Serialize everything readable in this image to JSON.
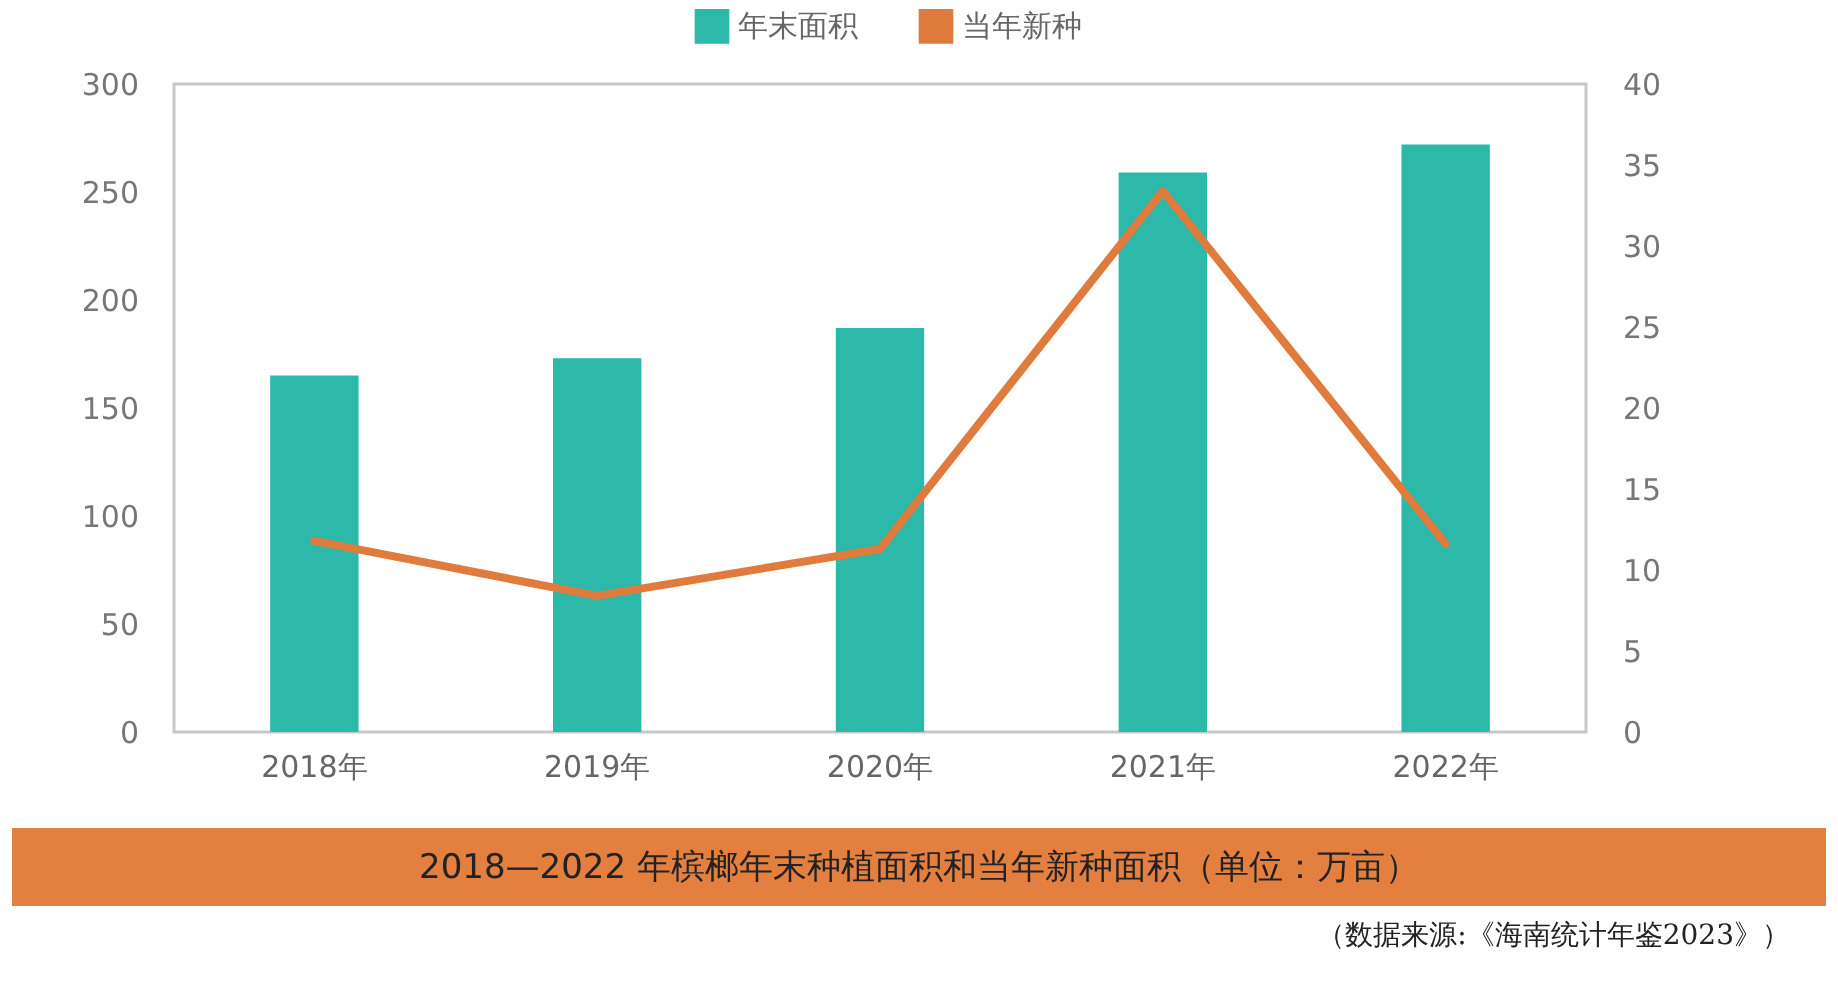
{
  "chart_data": {
    "type": "bar",
    "title": "2018—2022 年槟榔年末种植面积和当年新种面积（单位：万亩）",
    "annotations": [
      "（数据来源:《海南统计年鉴2023》）"
    ],
    "categories": [
      "2018年",
      "2019年",
      "2020年",
      "2021年",
      "2022年"
    ],
    "series": [
      {
        "name": "年末面积",
        "color": "#2cb9aa",
        "values": [
          165,
          173,
          187,
          259,
          272
        ]
      },
      {
        "name": "当年新种",
        "type": "line",
        "axis": "y2",
        "color": "#e07b3e",
        "values": [
          11.8,
          8.4,
          11.3,
          33.4,
          11.6
        ]
      }
    ],
    "ylim": [
      0,
      300
    ],
    "yticks": [
      0,
      50,
      100,
      150,
      200,
      250,
      300
    ],
    "y2lim": [
      0,
      40
    ],
    "y2ticks": [
      0,
      5,
      10,
      15,
      20,
      25,
      30,
      35,
      40
    ],
    "legend": "top",
    "grid": false
  }
}
